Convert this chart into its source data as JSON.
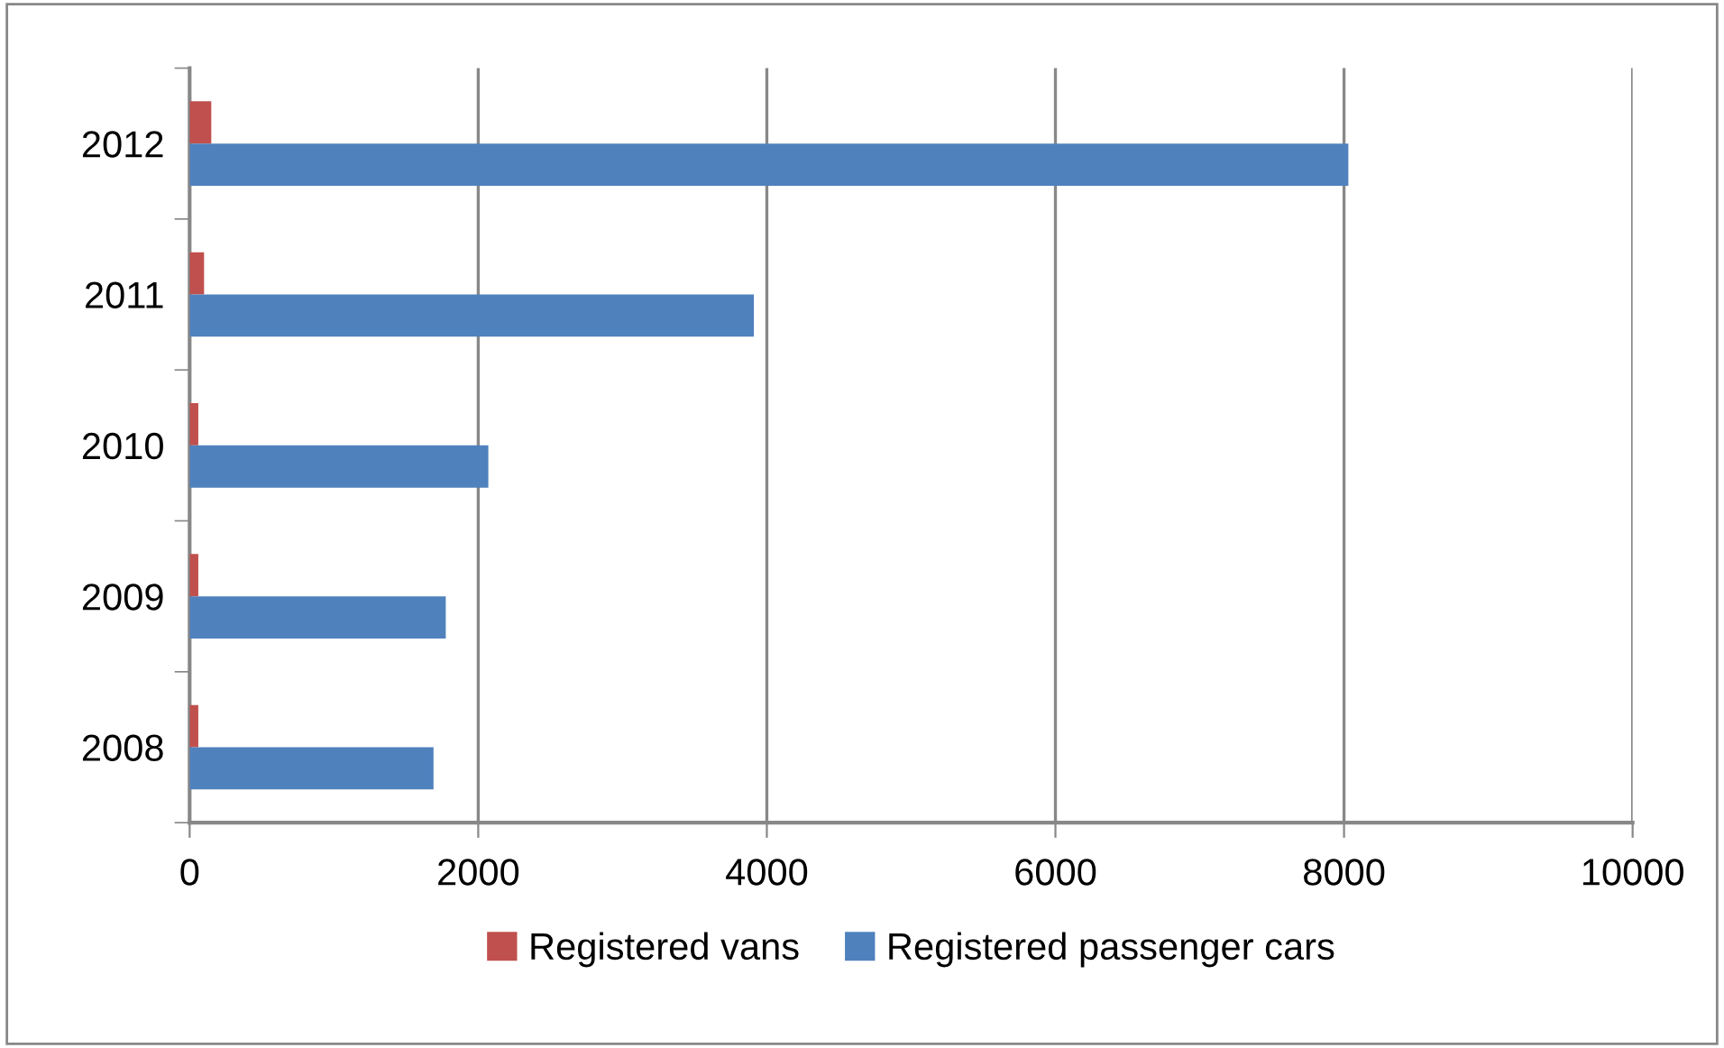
{
  "chart_data": {
    "type": "bar",
    "orientation": "horizontal",
    "categories": [
      "2012",
      "2011",
      "2010",
      "2009",
      "2008"
    ],
    "series": [
      {
        "name": "Registered vans",
        "color": "#c0504d",
        "values": [
          150,
          100,
          60,
          60,
          60
        ]
      },
      {
        "name": "Registered passenger cars",
        "color": "#4f81bd",
        "values": [
          8030,
          3910,
          2070,
          1775,
          1690
        ]
      }
    ],
    "xlim": [
      0,
      10000
    ],
    "xticks": [
      0,
      2000,
      4000,
      6000,
      8000,
      10000
    ],
    "grid": "x",
    "legend": "bottom"
  }
}
